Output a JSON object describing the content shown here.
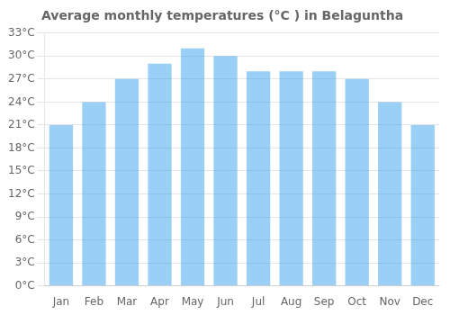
{
  "chart_data": {
    "type": "bar",
    "title": "Average monthly temperatures (°C ) in Belaguntha",
    "categories": [
      "Jan",
      "Feb",
      "Mar",
      "Apr",
      "May",
      "Jun",
      "Jul",
      "Aug",
      "Sep",
      "Oct",
      "Nov",
      "Dec"
    ],
    "values": [
      21,
      24,
      27,
      29,
      31,
      30,
      28,
      28,
      28,
      27,
      24,
      21
    ],
    "ylim": [
      0,
      33
    ],
    "yticks": [
      {
        "value": 0,
        "label": "0°C"
      },
      {
        "value": 3,
        "label": "3°C"
      },
      {
        "value": 6,
        "label": "6°C"
      },
      {
        "value": 9,
        "label": "9°C"
      },
      {
        "value": 12,
        "label": "12°C"
      },
      {
        "value": 15,
        "label": "15°C"
      },
      {
        "value": 18,
        "label": "18°C"
      },
      {
        "value": 21,
        "label": "21°C"
      },
      {
        "value": 24,
        "label": "24°C"
      },
      {
        "value": 27,
        "label": "27°C"
      },
      {
        "value": 30,
        "label": "30°C"
      },
      {
        "value": 33,
        "label": "33°C"
      }
    ],
    "grid": true
  }
}
